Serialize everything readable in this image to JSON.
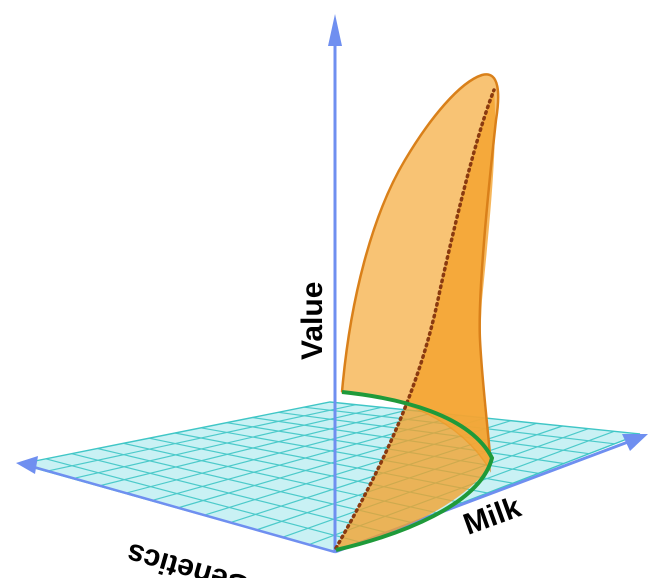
{
  "labels": {
    "value_axis": "Value",
    "milk_axis": "Milk",
    "genetics_axis": "Genetics"
  },
  "colors": {
    "axis": "#6f8ff0",
    "grid_fill": "#bfeff2",
    "grid_line": "#3fc6c6",
    "surface_fill": "#f5a83a",
    "surface_edge": "#d9801a",
    "dotted_curve": "#8a3a10",
    "base_curve": "#1f9a3a"
  },
  "icons": {
    "axis_tip": "arrowhead-icon"
  }
}
